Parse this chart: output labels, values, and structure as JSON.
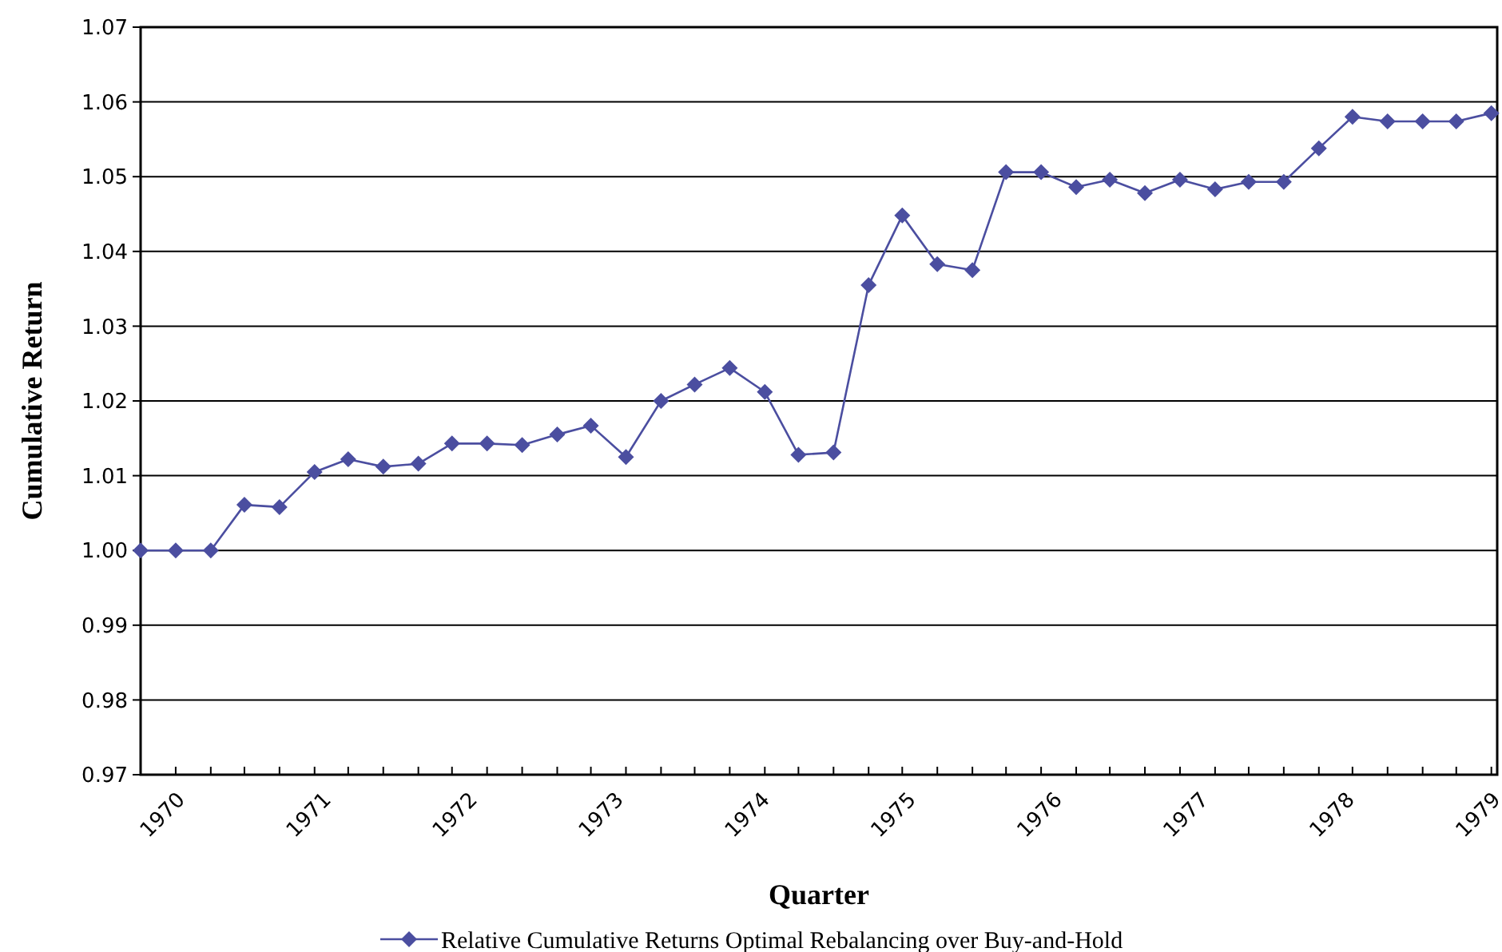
{
  "chart_data": {
    "type": "line",
    "xlabel": "Quarter",
    "ylabel": "Cumulative Return",
    "x": [
      1969.76,
      1970.0,
      1970.24,
      1970.47,
      1970.71,
      1970.95,
      1971.18,
      1971.42,
      1971.66,
      1971.89,
      1972.13,
      1972.37,
      1972.61,
      1972.84,
      1973.08,
      1973.32,
      1973.55,
      1973.79,
      1974.03,
      1974.26,
      1974.5,
      1974.74,
      1974.97,
      1975.21,
      1975.45,
      1975.68,
      1975.92,
      1976.16,
      1976.39,
      1976.63,
      1976.87,
      1977.11,
      1977.34,
      1977.58,
      1977.82,
      1978.05,
      1978.29,
      1978.53,
      1978.76,
      1979.0
    ],
    "series": [
      {
        "name": "Relative Cumulative Returns Optimal Rebalancing over Buy-and-Hold",
        "color": "#4b4ea0",
        "values": [
          1.0,
          1.0,
          1.0,
          1.0061,
          1.0058,
          1.0105,
          1.0122,
          1.0112,
          1.0116,
          1.0143,
          1.0143,
          1.0141,
          1.0155,
          1.0167,
          1.0125,
          1.02,
          1.0222,
          1.0244,
          1.0212,
          1.0128,
          1.0131,
          1.0355,
          1.0448,
          1.0383,
          1.0375,
          1.0506,
          1.0506,
          1.0486,
          1.0496,
          1.0478,
          1.0496,
          1.0483,
          1.0493,
          1.0493,
          1.0538,
          1.058,
          1.0574,
          1.0574,
          1.0574,
          1.0585
        ]
      }
    ],
    "xlim": [
      1969.76,
      1979.04
    ],
    "xticks": [
      1970,
      1971,
      1972,
      1973,
      1974,
      1975,
      1976,
      1977,
      1978,
      1979
    ],
    "ylim": [
      0.97,
      1.07
    ],
    "yticks": [
      {
        "value": 0.97,
        "label": "0.97"
      },
      {
        "value": 0.98,
        "label": "0.98"
      },
      {
        "value": 0.99,
        "label": "0.99"
      },
      {
        "value": 1.0,
        "label": "1.00"
      },
      {
        "value": 1.01,
        "label": "1.01"
      },
      {
        "value": 1.02,
        "label": "1.02"
      },
      {
        "value": 1.03,
        "label": "1.03"
      },
      {
        "value": 1.04,
        "label": "1.04"
      },
      {
        "value": 1.05,
        "label": "1.05"
      },
      {
        "value": 1.06,
        "label": "1.06"
      },
      {
        "value": 1.07,
        "label": "1.07"
      }
    ],
    "grid": "y",
    "legend": "bottom",
    "marker": "diamond",
    "line_style": "solid"
  }
}
